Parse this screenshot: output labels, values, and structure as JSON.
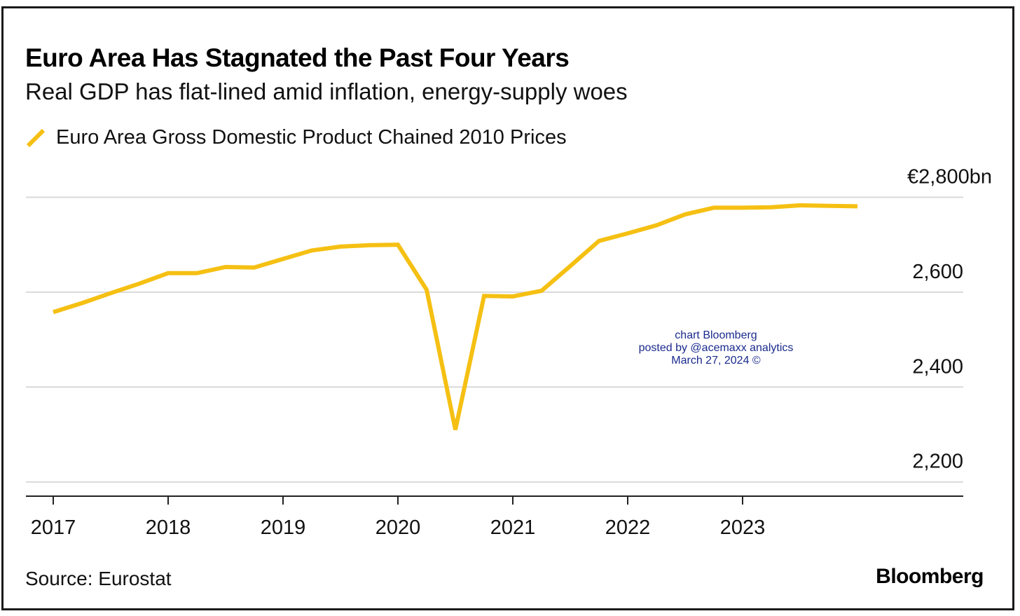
{
  "title": "Euro Area Has Stagnated the Past Four Years",
  "subtitle": "Real GDP has flat-lined amid inflation, energy-supply woes",
  "source": "Source: Eurostat",
  "brand": "Bloomberg",
  "watermark": {
    "line1": "chart Bloomberg",
    "line2": "posted by @acemaxx analytics",
    "line3": "March 27, 2024 ©"
  },
  "colors": {
    "series": "#f5c013",
    "grid": "#d9d9d9",
    "axis": "#222222",
    "watermark": "#1a2a8c"
  },
  "chart_data": {
    "type": "line",
    "title": "Euro Area Has Stagnated the Past Four Years",
    "subtitle": "Real GDP has flat-lined amid inflation, energy-supply woes",
    "ylabel": "",
    "y_unit_label": "€2,800bn",
    "ylim": [
      2170,
      2820
    ],
    "y_ticks": [
      2200,
      2400,
      2600,
      2800
    ],
    "y_tick_labels": [
      "2,200",
      "2,400",
      "2,600",
      "€2,800bn"
    ],
    "y_axis_side": "right",
    "x_ticks": [
      2017,
      2018,
      2019,
      2020,
      2021,
      2022,
      2023
    ],
    "x_tick_labels": [
      "2017",
      "2018",
      "2019",
      "2020",
      "2021",
      "2022",
      "2023"
    ],
    "xlim": [
      2016.85,
      2024.9
    ],
    "grid": true,
    "legend_position": "top-left",
    "series": [
      {
        "name": "Euro Area Gross Domestic Product Chained 2010 Prices",
        "color": "#f5c013",
        "x": [
          2017.0,
          2017.25,
          2017.5,
          2017.75,
          2018.0,
          2018.25,
          2018.5,
          2018.75,
          2019.0,
          2019.25,
          2019.5,
          2019.75,
          2020.0,
          2020.25,
          2020.5,
          2020.75,
          2021.0,
          2021.25,
          2021.5,
          2021.75,
          2022.0,
          2022.25,
          2022.5,
          2022.75,
          2023.0,
          2023.25,
          2023.5,
          2023.75,
          2024.0
        ],
        "values": [
          2558,
          2577,
          2598,
          2618,
          2640,
          2640,
          2653,
          2652,
          2670,
          2688,
          2696,
          2699,
          2700,
          2605,
          2310,
          2592,
          2591,
          2603,
          2655,
          2708,
          2724,
          2741,
          2764,
          2778,
          2778,
          2779,
          2783,
          2782,
          2781
        ]
      }
    ]
  }
}
